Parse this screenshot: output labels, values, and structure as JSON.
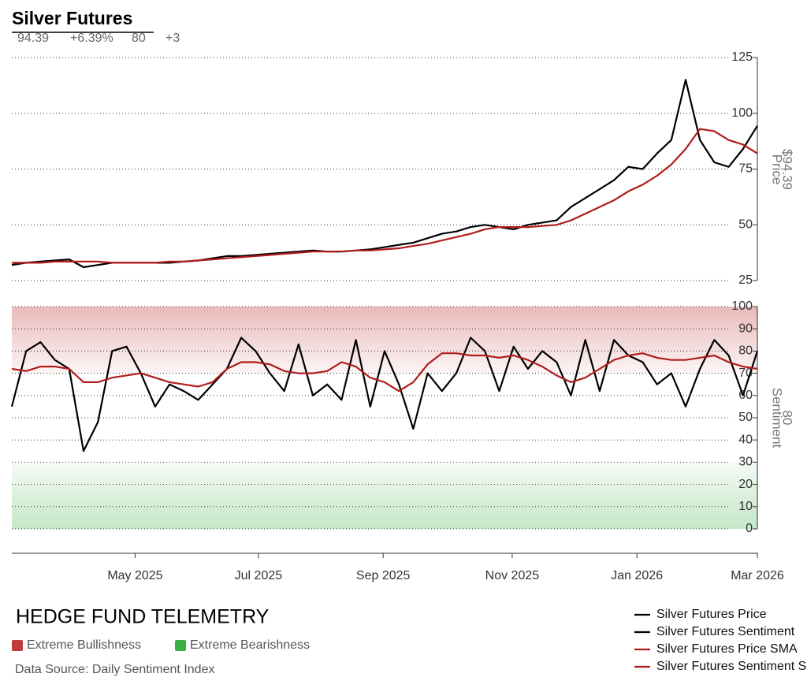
{
  "header": {
    "title": "Silver Futures",
    "stats": [
      "94.39",
      "+6.39%",
      "80",
      "+3"
    ]
  },
  "chart_data": [
    {
      "type": "line",
      "ylabel": "Price",
      "value_label": "$94.39",
      "xlim": [
        0,
        52
      ],
      "ylim": [
        25,
        125
      ],
      "yticks": [
        25,
        50,
        75,
        100,
        125
      ],
      "grid": true,
      "series": [
        {
          "name": "Silver Futures Price",
          "color": "#000000",
          "values": [
            32,
            33,
            33.5,
            34,
            34.5,
            31,
            32,
            33,
            33,
            33,
            33,
            33,
            33.5,
            34,
            35,
            36,
            36,
            36.5,
            37,
            37.5,
            38,
            38.5,
            38,
            38,
            38.5,
            39,
            40,
            41,
            42,
            44,
            46,
            47,
            49,
            50,
            49,
            48,
            50,
            51,
            52,
            58,
            62,
            66,
            70,
            76,
            75,
            82,
            88,
            115,
            88,
            78,
            76,
            84,
            94.39
          ]
        },
        {
          "name": "Silver Futures Price SMA",
          "color": "#b01c1c",
          "values": [
            33,
            33,
            33,
            33.5,
            33.5,
            33.5,
            33.5,
            33,
            33,
            33,
            33,
            33.5,
            33.5,
            34,
            34.5,
            35,
            35.5,
            36,
            36.5,
            37,
            37.5,
            38,
            38,
            38,
            38.5,
            38.5,
            39,
            39.5,
            40.5,
            41.5,
            43,
            44.5,
            46,
            48,
            49,
            49,
            49,
            49.5,
            50,
            52,
            55,
            58,
            61,
            65,
            68,
            72,
            77,
            84,
            93,
            92,
            88,
            86,
            82
          ]
        }
      ]
    },
    {
      "type": "line",
      "ylabel": "Sentiment",
      "value_label": "80",
      "xlim": [
        0,
        52
      ],
      "ylim": [
        0,
        100
      ],
      "yticks": [
        0,
        10,
        20,
        30,
        40,
        50,
        60,
        70,
        80,
        90,
        100
      ],
      "grid": true,
      "xticks": [
        {
          "value": 8.6,
          "label": "May 2025"
        },
        {
          "value": 17.2,
          "label": "Jul 2025"
        },
        {
          "value": 25.9,
          "label": "Sep 2025"
        },
        {
          "value": 34.9,
          "label": "Nov 2025"
        },
        {
          "value": 43.6,
          "label": "Jan 2026"
        },
        {
          "value": 52,
          "label": "Mar 2026"
        }
      ],
      "bands": [
        {
          "name": "Extreme Bullishness",
          "color": "#c0393b",
          "range": [
            70,
            100
          ]
        },
        {
          "name": "Extreme Bearishness",
          "color": "#3cb043",
          "range": [
            0,
            30
          ]
        }
      ],
      "series": [
        {
          "name": "Silver Futures Sentiment",
          "color": "#000000",
          "values": [
            55,
            80,
            84,
            76,
            72,
            35,
            48,
            80,
            82,
            70,
            55,
            65,
            62,
            58,
            65,
            72,
            86,
            80,
            70,
            62,
            83,
            60,
            65,
            58,
            85,
            55,
            80,
            65,
            45,
            70,
            62,
            70,
            86,
            80,
            62,
            82,
            72,
            80,
            75,
            60,
            85,
            62,
            85,
            78,
            75,
            65,
            70,
            55,
            72,
            85,
            78,
            60,
            80
          ]
        },
        {
          "name": "Silver Futures Sentiment SMA",
          "color": "#b01c1c",
          "values": [
            72,
            71,
            73,
            73,
            72,
            66,
            66,
            68,
            69,
            70,
            68,
            66,
            65,
            64,
            66,
            72,
            75,
            75,
            74,
            71,
            70,
            70,
            71,
            75,
            73,
            68,
            66,
            62,
            66,
            74,
            79,
            79,
            78,
            78,
            77,
            78,
            76,
            73,
            69,
            66,
            68,
            72,
            76,
            78,
            79,
            77,
            76,
            76,
            77,
            78,
            75,
            73,
            72
          ]
        }
      ]
    }
  ],
  "footer": {
    "brand": "HEDGE FUND TELEMETRY",
    "source": "Data Source: Daily Sentiment Index"
  }
}
